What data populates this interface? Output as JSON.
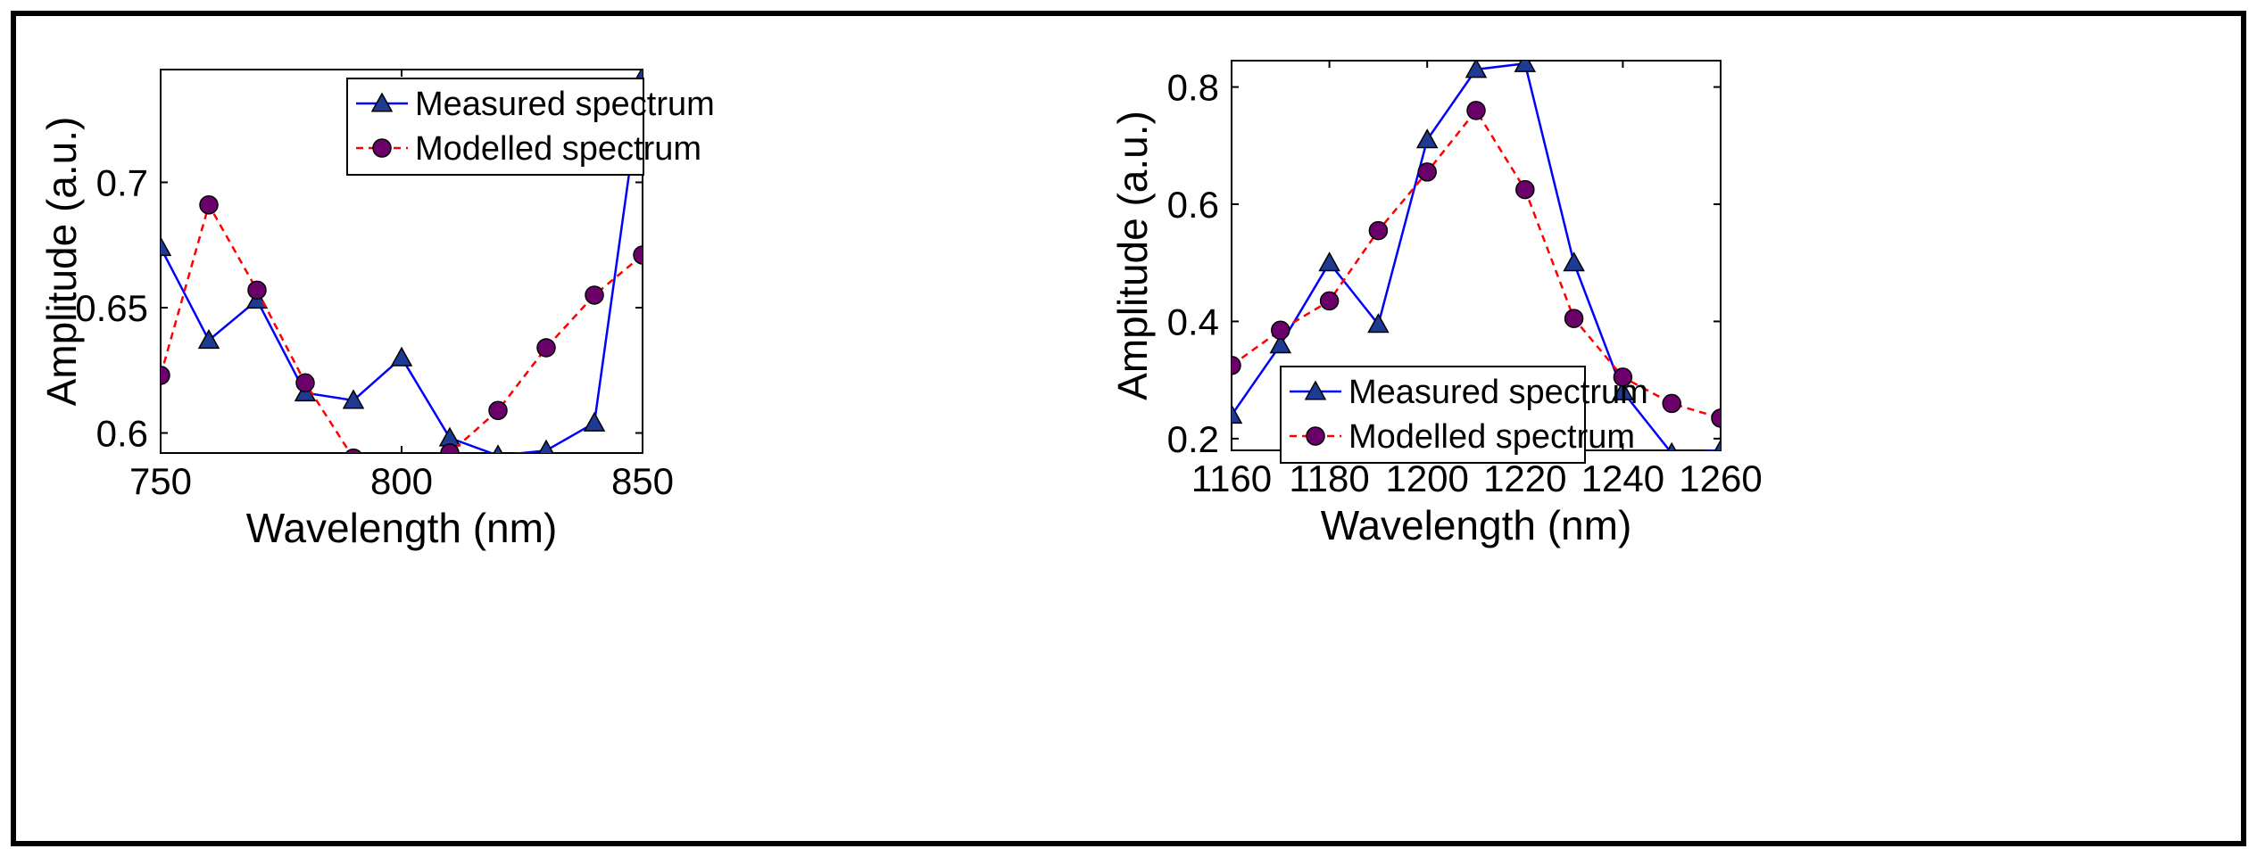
{
  "chart_data": [
    {
      "type": "line",
      "xlabel": "Wavelength (nm)",
      "ylabel": "Amplitude (a.u.)",
      "xlim": [
        750,
        850
      ],
      "ylim": [
        0.592,
        0.745
      ],
      "xticks": [
        750,
        800,
        850
      ],
      "xtick_labels": [
        "750",
        "800",
        "850"
      ],
      "yticks": [
        0.6,
        0.65,
        0.7
      ],
      "ytick_labels": [
        "0.6",
        "0.65",
        "0.7"
      ],
      "legend_position": "top-right",
      "grid": false,
      "series": [
        {
          "name": "Measured spectrum",
          "color": "#0000ff",
          "line_style": "solid",
          "marker": "triangle",
          "marker_color": "#1f3a93",
          "x": [
            750,
            760,
            770,
            780,
            790,
            800,
            810,
            820,
            830,
            840,
            850
          ],
          "y": [
            0.674,
            0.637,
            0.653,
            0.616,
            0.613,
            0.63,
            0.598,
            0.591,
            0.593,
            0.604,
            0.742
          ]
        },
        {
          "name": "Modelled spectrum",
          "color": "#ff0000",
          "line_style": "dashed",
          "marker": "circle",
          "marker_color": "#6b006b",
          "x": [
            750,
            760,
            770,
            780,
            790,
            800,
            810,
            820,
            830,
            840,
            850
          ],
          "y": [
            0.623,
            0.691,
            0.657,
            0.62,
            0.59,
            0.58,
            0.592,
            0.609,
            0.634,
            0.655,
            0.671
          ]
        }
      ]
    },
    {
      "type": "line",
      "xlabel": "Wavelength (nm)",
      "ylabel": "Amplitude (a.u.)",
      "xlim": [
        1160,
        1260
      ],
      "ylim": [
        0.18,
        0.845
      ],
      "xticks": [
        1160,
        1180,
        1200,
        1220,
        1240,
        1260
      ],
      "xtick_labels": [
        "1160",
        "1180",
        "1200",
        "1220",
        "1240",
        "1260"
      ],
      "yticks": [
        0.2,
        0.4,
        0.6,
        0.8
      ],
      "ytick_labels": [
        "0.2",
        "0.4",
        "0.6",
        "0.8"
      ],
      "legend_position": "bottom-right",
      "grid": false,
      "series": [
        {
          "name": "Measured spectrum",
          "color": "#0000ff",
          "line_style": "solid",
          "marker": "triangle",
          "marker_color": "#1f3a93",
          "x": [
            1160,
            1170,
            1180,
            1190,
            1200,
            1210,
            1220,
            1230,
            1240,
            1250,
            1260
          ],
          "y": [
            0.24,
            0.36,
            0.5,
            0.395,
            0.71,
            0.83,
            0.84,
            0.5,
            0.28,
            0.175,
            0.18
          ]
        },
        {
          "name": "Modelled spectrum",
          "color": "#ff0000",
          "line_style": "dashed",
          "marker": "circle",
          "marker_color": "#6b006b",
          "x": [
            1160,
            1170,
            1180,
            1190,
            1200,
            1210,
            1220,
            1230,
            1240,
            1250,
            1260
          ],
          "y": [
            0.325,
            0.385,
            0.435,
            0.555,
            0.655,
            0.76,
            0.625,
            0.405,
            0.305,
            0.26,
            0.235
          ]
        }
      ]
    }
  ]
}
